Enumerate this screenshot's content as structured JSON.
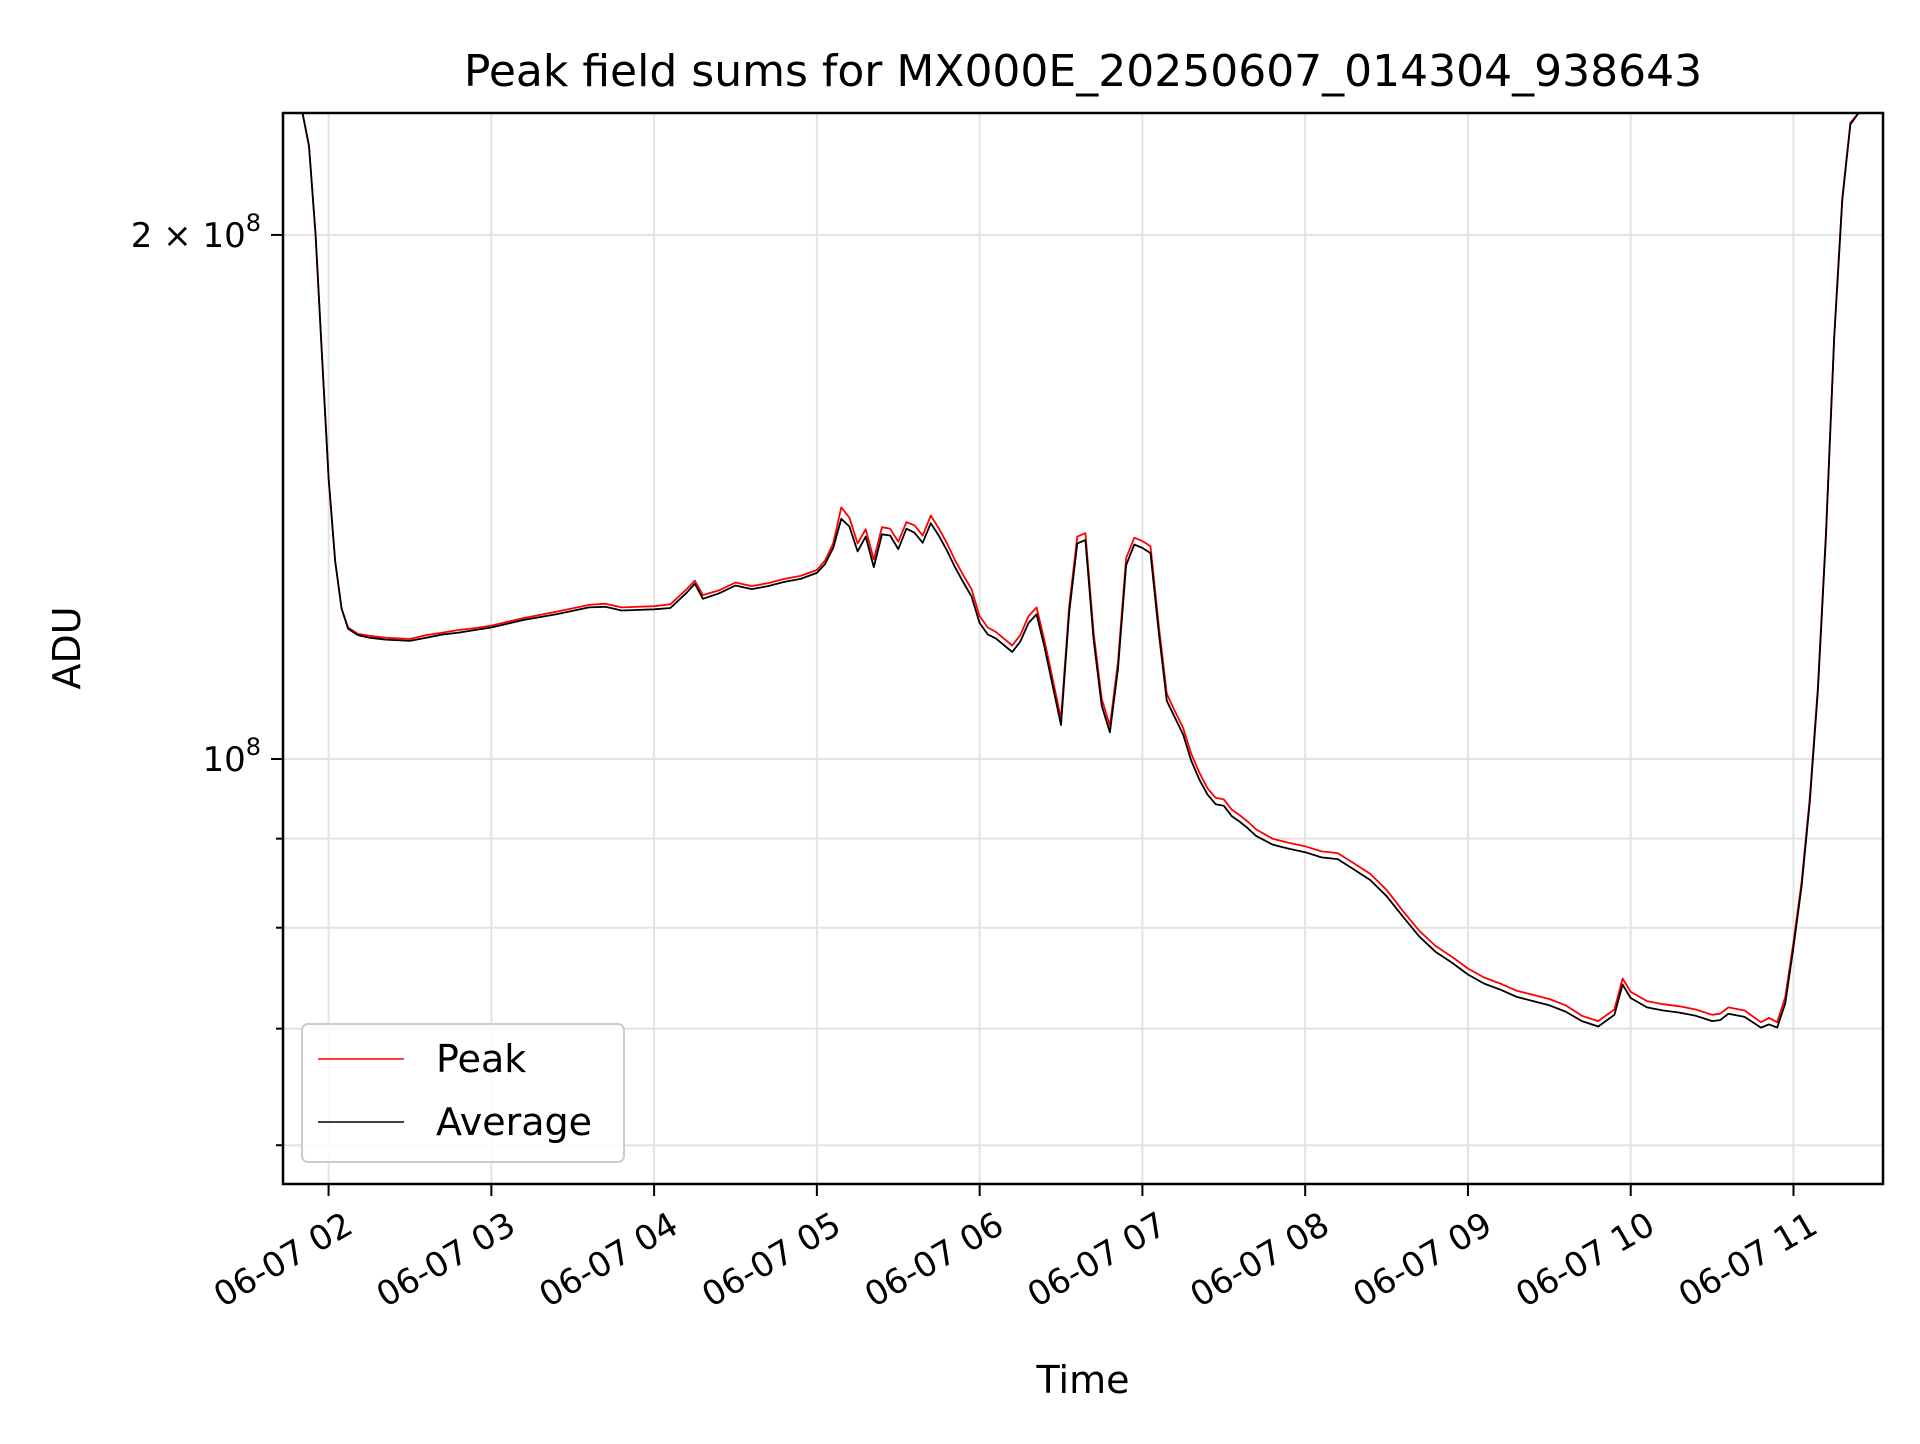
{
  "chart_data": {
    "type": "line",
    "title": "Peak field sums for MX000E_20250607_014304_938643",
    "xlabel": "Time",
    "ylabel": "ADU",
    "x_tick_labels": [
      "06-07 02",
      "06-07 03",
      "06-07 04",
      "06-07 05",
      "06-07 06",
      "06-07 07",
      "06-07 08",
      "06-07 09",
      "06-07 10",
      "06-07 11"
    ],
    "x_tick_hours": [
      2,
      3,
      4,
      5,
      6,
      7,
      8,
      9,
      10,
      11
    ],
    "y_scale": "log",
    "y_tick_labels": [
      {
        "base": "2 × 10",
        "exp": "8",
        "value": 200000000
      },
      {
        "base": "10",
        "exp": "8",
        "value": 100000000
      }
    ],
    "y_minor_ticks": [
      60000000,
      70000000,
      80000000,
      90000000
    ],
    "xlim": [
      1.72,
      11.55
    ],
    "ylim": [
      57000000,
      235000000
    ],
    "grid": true,
    "legend_position": "lower-left",
    "series": [
      {
        "name": "Peak",
        "color": "#ff0000",
        "x": [
          1.72,
          1.84,
          1.88,
          1.92,
          1.96,
          2.0,
          2.04,
          2.08,
          2.12,
          2.18,
          2.25,
          2.35,
          2.5,
          2.6,
          2.7,
          2.8,
          2.9,
          3.0,
          3.2,
          3.4,
          3.6,
          3.7,
          3.8,
          4.0,
          4.1,
          4.2,
          4.25,
          4.3,
          4.4,
          4.5,
          4.6,
          4.7,
          4.8,
          4.9,
          5.0,
          5.05,
          5.1,
          5.15,
          5.2,
          5.25,
          5.3,
          5.35,
          5.4,
          5.45,
          5.5,
          5.55,
          5.6,
          5.65,
          5.7,
          5.75,
          5.8,
          5.85,
          5.9,
          5.95,
          6.0,
          6.05,
          6.1,
          6.2,
          6.25,
          6.3,
          6.35,
          6.4,
          6.45,
          6.5,
          6.55,
          6.6,
          6.65,
          6.7,
          6.75,
          6.8,
          6.85,
          6.9,
          6.95,
          7.0,
          7.05,
          7.1,
          7.15,
          7.2,
          7.25,
          7.3,
          7.35,
          7.4,
          7.45,
          7.5,
          7.55,
          7.6,
          7.65,
          7.7,
          7.8,
          7.9,
          8.0,
          8.1,
          8.2,
          8.3,
          8.4,
          8.5,
          8.6,
          8.7,
          8.8,
          8.9,
          9.0,
          9.1,
          9.2,
          9.3,
          9.4,
          9.5,
          9.6,
          9.7,
          9.8,
          9.9,
          9.95,
          10.0,
          10.1,
          10.2,
          10.3,
          10.4,
          10.5,
          10.55,
          10.6,
          10.7,
          10.8,
          10.85,
          10.9,
          10.95,
          11.0,
          11.05,
          11.1,
          11.15,
          11.2,
          11.25,
          11.3,
          11.35,
          11.4,
          11.55
        ],
        "y": [
          235000000,
          235000000,
          225000000,
          200000000,
          170000000,
          145000000,
          130000000,
          122000000,
          119000000,
          118000000,
          117700000,
          117400000,
          117200000,
          117800000,
          118200000,
          118600000,
          118900000,
          119300000,
          120500000,
          121500000,
          122600000,
          122800000,
          122200000,
          122400000,
          122700000,
          125200000,
          126600000,
          124200000,
          125000000,
          126300000,
          125700000,
          126200000,
          126900000,
          127400000,
          128400000,
          130000000,
          133000000,
          139500000,
          137600000,
          133000000,
          135500000,
          130200000,
          135900000,
          135600000,
          133300000,
          136800000,
          136200000,
          134400000,
          138000000,
          135600000,
          133000000,
          130000000,
          127500000,
          125200000,
          120800000,
          119000000,
          118300000,
          116200000,
          117800000,
          120800000,
          122200000,
          116800000,
          111000000,
          105500000,
          122500000,
          134200000,
          134800000,
          118200000,
          108300000,
          104500000,
          113700000,
          130400000,
          134000000,
          133400000,
          132500000,
          119400000,
          109000000,
          106500000,
          104200000,
          100700000,
          98200000,
          96200000,
          95000000,
          94800000,
          93500000,
          92800000,
          92000000,
          91100000,
          90000000,
          89500000,
          89100000,
          88500000,
          88300000,
          87100000,
          85900000,
          84100000,
          81800000,
          79700000,
          78100000,
          77000000,
          75800000,
          74900000,
          74300000,
          73600000,
          73200000,
          72800000,
          72200000,
          71200000,
          70700000,
          71800000,
          74800000,
          73500000,
          72600000,
          72300000,
          72100000,
          71800000,
          71300000,
          71400000,
          72000000,
          71700000,
          70600000,
          71000000,
          70600000,
          73000000,
          78500000,
          85000000,
          95000000,
          110000000,
          135000000,
          175000000,
          210000000,
          232000000,
          235000000,
          235000000
        ]
      },
      {
        "name": "Average",
        "color": "#000000",
        "x": [
          1.72,
          1.84,
          1.88,
          1.92,
          1.96,
          2.0,
          2.04,
          2.08,
          2.12,
          2.18,
          2.25,
          2.35,
          2.5,
          2.6,
          2.7,
          2.8,
          2.9,
          3.0,
          3.2,
          3.4,
          3.6,
          3.7,
          3.8,
          4.0,
          4.1,
          4.2,
          4.25,
          4.3,
          4.4,
          4.5,
          4.6,
          4.7,
          4.8,
          4.9,
          5.0,
          5.05,
          5.1,
          5.15,
          5.2,
          5.25,
          5.3,
          5.35,
          5.4,
          5.45,
          5.5,
          5.55,
          5.6,
          5.65,
          5.7,
          5.75,
          5.8,
          5.85,
          5.9,
          5.95,
          6.0,
          6.05,
          6.1,
          6.2,
          6.25,
          6.3,
          6.35,
          6.4,
          6.45,
          6.5,
          6.55,
          6.6,
          6.65,
          6.7,
          6.75,
          6.8,
          6.85,
          6.9,
          6.95,
          7.0,
          7.05,
          7.1,
          7.15,
          7.2,
          7.25,
          7.3,
          7.35,
          7.4,
          7.45,
          7.5,
          7.55,
          7.6,
          7.65,
          7.7,
          7.8,
          7.9,
          8.0,
          8.1,
          8.2,
          8.3,
          8.4,
          8.5,
          8.6,
          8.7,
          8.8,
          8.9,
          9.0,
          9.1,
          9.2,
          9.3,
          9.4,
          9.5,
          9.6,
          9.7,
          9.8,
          9.9,
          9.95,
          10.0,
          10.1,
          10.2,
          10.3,
          10.4,
          10.5,
          10.55,
          10.6,
          10.7,
          10.8,
          10.85,
          10.9,
          10.95,
          11.0,
          11.05,
          11.1,
          11.15,
          11.2,
          11.25,
          11.3,
          11.35,
          11.4,
          11.55
        ],
        "y": [
          235000000,
          235000000,
          225000000,
          200000000,
          170000000,
          145000000,
          130000000,
          122000000,
          118800000,
          117800000,
          117400000,
          117100000,
          116900000,
          117400000,
          117900000,
          118200000,
          118600000,
          119000000,
          120200000,
          121100000,
          122200000,
          122300000,
          121700000,
          121900000,
          122100000,
          124600000,
          126100000,
          123600000,
          124500000,
          125800000,
          125200000,
          125700000,
          126400000,
          126900000,
          127900000,
          129400000,
          132200000,
          137400000,
          136000000,
          131600000,
          134200000,
          128900000,
          134600000,
          134400000,
          132000000,
          135600000,
          134900000,
          133100000,
          136600000,
          134300000,
          131700000,
          128800000,
          126300000,
          124000000,
          119700000,
          117900000,
          117300000,
          115200000,
          116800000,
          119700000,
          121100000,
          115800000,
          110000000,
          104600000,
          121400000,
          133000000,
          133600000,
          117100000,
          107300000,
          103600000,
          112700000,
          129200000,
          132800000,
          132200000,
          131300000,
          118300000,
          108000000,
          105600000,
          103300000,
          99800000,
          97300000,
          95400000,
          94200000,
          94000000,
          92700000,
          92000000,
          91200000,
          90300000,
          89300000,
          88800000,
          88400000,
          87800000,
          87600000,
          86400000,
          85200000,
          83400000,
          81200000,
          79100000,
          77500000,
          76400000,
          75200000,
          74300000,
          73700000,
          73000000,
          72600000,
          72200000,
          71600000,
          70700000,
          70200000,
          71300000,
          74200000,
          72900000,
          72000000,
          71700000,
          71500000,
          71200000,
          70700000,
          70800000,
          71400000,
          71100000,
          70100000,
          70400000,
          70100000,
          72400000,
          78000000,
          84500000,
          94500000,
          109500000,
          134500000,
          174500000,
          209500000,
          231500000,
          235000000,
          235000000
        ]
      }
    ]
  }
}
